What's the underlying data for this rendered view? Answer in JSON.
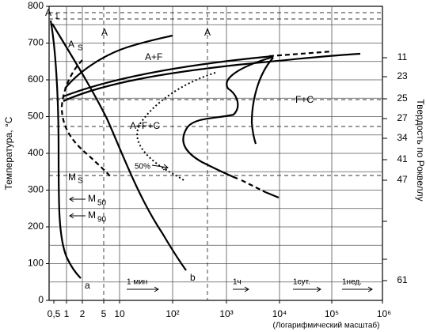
{
  "y_axis": {
    "title": "Температура, °C",
    "ticks": [
      "0",
      "100",
      "200",
      "300",
      "400",
      "500",
      "600",
      "700",
      "800"
    ]
  },
  "x_axis": {
    "ticks": [
      "0,5",
      "1",
      "2",
      "5",
      "10",
      "10²",
      "10³",
      "10⁴",
      "10⁵",
      "10⁶"
    ],
    "caption": "(Логарифмический масштаб)"
  },
  "right_axis": {
    "title": "Твердость по Роквеллу",
    "ticks": [
      "11",
      "23",
      "25",
      "27",
      "34",
      "41",
      "47",
      "61"
    ]
  },
  "annotations": [
    "A",
    "1",
    "A",
    "S",
    "A",
    "A",
    "A+F",
    "F+C",
    "A+F+C",
    "50%",
    "M",
    "S",
    "M",
    "50",
    "M",
    "90",
    "a",
    "b"
  ],
  "time_marks": [
    "1 мин",
    "1ч",
    "1сут.",
    "1нед."
  ]
}
